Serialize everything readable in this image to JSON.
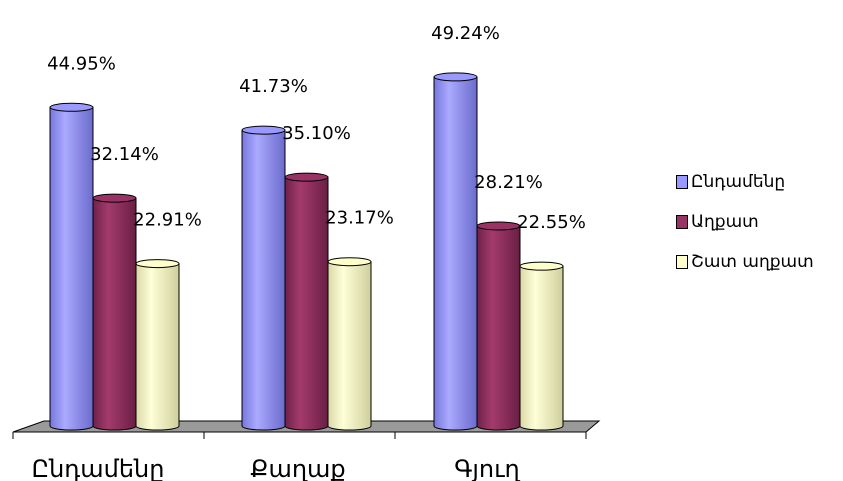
{
  "chart_data": {
    "type": "bar",
    "title": "",
    "xlabel": "",
    "ylabel": "",
    "categories": [
      "Ընդամենը",
      "Քաղաք",
      "Գյուղ"
    ],
    "series": [
      {
        "name": "Ընդամենը",
        "values": [
          44.95,
          41.73,
          49.24
        ],
        "labels": [
          "44.95%",
          "41.73%",
          "49.24%"
        ],
        "color": "#9999ff"
      },
      {
        "name": "Աղքատ",
        "values": [
          32.14,
          35.1,
          28.21
        ],
        "labels": [
          "32.14%",
          "35.10%",
          "28.21%"
        ],
        "color": "#993366"
      },
      {
        "name": "Շատ աղքատ",
        "values": [
          22.91,
          23.17,
          22.55
        ],
        "labels": [
          "22.91%",
          "23.17%",
          "22.55%"
        ],
        "color": "#ffffcc"
      }
    ],
    "ylim": [
      0,
      55
    ],
    "style": "3d-cylinder",
    "grid": false,
    "legend": "right"
  }
}
